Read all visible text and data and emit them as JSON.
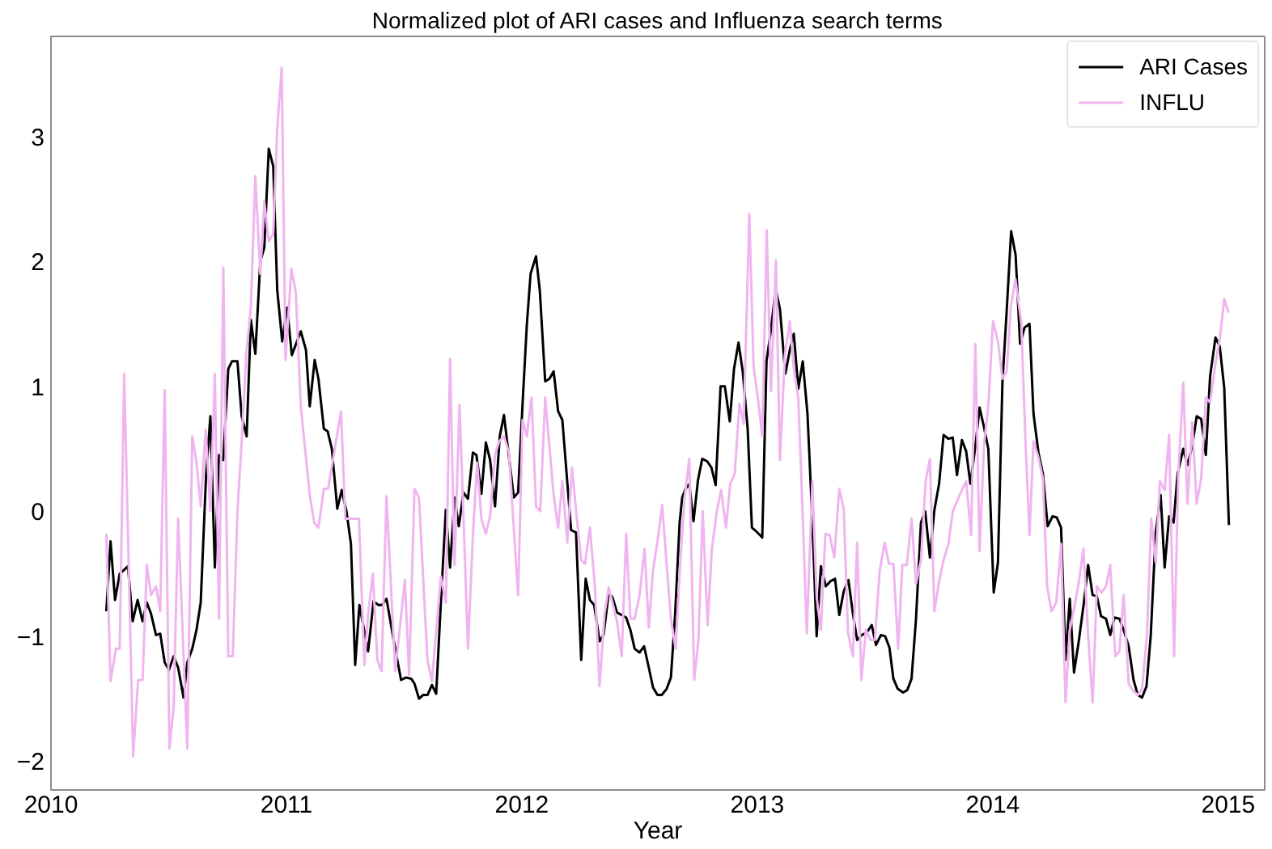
{
  "chart_data": {
    "type": "line",
    "title": "Normalized plot of ARI cases and Influenza search terms",
    "xlabel": "Year",
    "xlim": [
      2010,
      2015.155
    ],
    "xticks": [
      2010,
      2011,
      2012,
      2013,
      2014,
      2015
    ],
    "ylim": [
      -2.23,
      3.8
    ],
    "yticks": [
      {
        "value": -2,
        "label": "−2"
      },
      {
        "value": -1,
        "label": "−1"
      },
      0,
      1,
      2,
      3
    ],
    "legend": "top right",
    "grid": false,
    "line_style": "solid",
    "series": [
      {
        "name": "ARI Cases",
        "color": "#000000",
        "x": [
          2010.235,
          2010.253,
          2010.272,
          2010.292,
          2010.327,
          2010.347,
          2010.368,
          2010.389,
          2010.407,
          2010.425,
          2010.446,
          2010.464,
          2010.483,
          2010.501,
          2010.521,
          2010.54,
          2010.563,
          2010.579,
          2010.6,
          2010.618,
          2010.636,
          2010.659,
          2010.677,
          2010.696,
          2010.714,
          2010.732,
          2010.753,
          2010.769,
          2010.792,
          2010.81,
          2010.831,
          2010.849,
          2010.868,
          2010.889,
          2010.906,
          2010.925,
          2010.944,
          2010.961,
          2010.982,
          2011.003,
          2011.023,
          2011.061,
          2011.083,
          2011.099,
          2011.12,
          2011.136,
          2011.159,
          2011.175,
          2011.193,
          2011.216,
          2011.235,
          2011.255,
          2011.274,
          2011.292,
          2011.31,
          2011.347,
          2011.37,
          2011.391,
          2011.406,
          2011.425,
          2011.448,
          2011.466,
          2011.487,
          2011.508,
          2011.53,
          2011.544,
          2011.563,
          2011.58,
          2011.599,
          2011.618,
          2011.636,
          2011.656,
          2011.677,
          2011.695,
          2011.714,
          2011.732,
          2011.752,
          2011.771,
          2011.792,
          2011.807,
          2011.828,
          2011.847,
          2011.865,
          2011.886,
          2011.906,
          2011.924,
          2011.943,
          2011.966,
          2011.984,
          2012.003,
          2012.021,
          2012.037,
          2012.06,
          2012.076,
          2012.099,
          2012.117,
          2012.135,
          2012.154,
          2012.172,
          2012.19,
          2012.209,
          2012.23,
          2012.252,
          2012.271,
          2012.289,
          2012.307,
          2012.33,
          2012.347,
          2012.369,
          2012.385,
          2012.404,
          2012.424,
          2012.443,
          2012.461,
          2012.479,
          2012.5,
          2012.519,
          2012.539,
          2012.557,
          2012.576,
          2012.594,
          2012.615,
          2012.633,
          2012.651,
          2012.67,
          2012.681,
          2012.695,
          2012.711,
          2012.729,
          2012.748,
          2012.766,
          2012.787,
          2012.805,
          2012.823,
          2012.844,
          2012.862,
          2012.883,
          2012.901,
          2012.92,
          2012.938,
          2012.959,
          2012.977,
          2012.995,
          2013.021,
          2013.039,
          2013.057,
          2013.078,
          2013.096,
          2013.119,
          2013.138,
          2013.155,
          2013.174,
          2013.193,
          2013.213,
          2013.234,
          2013.252,
          2013.27,
          2013.291,
          2013.31,
          2013.33,
          2013.348,
          2013.367,
          2013.387,
          2013.406,
          2013.424,
          2013.444,
          2013.465,
          2013.486,
          2013.504,
          2013.525,
          2013.543,
          2013.561,
          2013.578,
          2013.596,
          2013.619,
          2013.637,
          2013.655,
          2013.674,
          2013.695,
          2013.713,
          2013.733,
          2013.752,
          2013.772,
          2013.791,
          2013.812,
          2013.83,
          2013.848,
          2013.869,
          2013.887,
          2013.905,
          2013.926,
          2013.944,
          2013.963,
          2013.981,
          2014.004,
          2014.022,
          2014.041,
          2014.059,
          2014.078,
          2014.097,
          2014.116,
          2014.135,
          2014.156,
          2014.173,
          2014.194,
          2014.213,
          2014.233,
          2014.254,
          2014.272,
          2014.29,
          2014.309,
          2014.327,
          2014.345,
          2014.366,
          2014.387,
          2014.405,
          2014.424,
          2014.442,
          2014.46,
          2014.481,
          2014.499,
          2014.517,
          2014.538,
          2014.556,
          2014.577,
          2014.598,
          2014.616,
          2014.634,
          2014.653,
          2014.671,
          2014.692,
          2014.713,
          2014.73,
          2014.749,
          2014.768,
          2014.785,
          2014.809,
          2014.827,
          2014.847,
          2014.866,
          2014.885,
          2014.905,
          2014.923,
          2014.946,
          2014.964,
          2014.983,
          2015.003
        ],
        "values": [
          -0.8,
          -0.24,
          -0.71,
          -0.5,
          -0.44,
          -0.88,
          -0.71,
          -0.88,
          -0.73,
          -0.82,
          -0.99,
          -0.98,
          -1.21,
          -1.27,
          -1.16,
          -1.25,
          -1.49,
          -1.21,
          -1.1,
          -0.95,
          -0.73,
          0.3,
          0.76,
          -0.45,
          0.45,
          0.41,
          1.14,
          1.2,
          1.2,
          0.76,
          0.6,
          1.53,
          1.26,
          2.0,
          2.11,
          2.9,
          2.76,
          1.77,
          1.36,
          1.63,
          1.25,
          1.44,
          1.29,
          0.84,
          1.21,
          1.06,
          0.66,
          0.64,
          0.5,
          0.02,
          0.17,
          0.0,
          -0.26,
          -1.23,
          -0.75,
          -1.12,
          -0.72,
          -0.75,
          -0.75,
          -0.7,
          -0.95,
          -1.14,
          -1.35,
          -1.33,
          -1.34,
          -1.38,
          -1.5,
          -1.47,
          -1.47,
          -1.39,
          -1.46,
          -0.73,
          0.01,
          -0.45,
          0.11,
          -0.12,
          0.15,
          0.1,
          0.47,
          0.45,
          0.14,
          0.55,
          0.41,
          0.04,
          0.6,
          0.77,
          0.47,
          0.11,
          0.15,
          0.86,
          1.49,
          1.9,
          2.04,
          1.77,
          1.04,
          1.06,
          1.12,
          0.8,
          0.73,
          0.3,
          -0.15,
          -0.17,
          -1.19,
          -0.54,
          -0.71,
          -0.75,
          -1.04,
          -0.99,
          -0.65,
          -0.69,
          -0.81,
          -0.83,
          -0.85,
          -0.95,
          -1.1,
          -1.13,
          -1.08,
          -1.25,
          -1.41,
          -1.47,
          -1.47,
          -1.42,
          -1.33,
          -0.82,
          -0.09,
          0.11,
          0.18,
          0.22,
          -0.08,
          0.25,
          0.42,
          0.4,
          0.35,
          0.21,
          1.0,
          1.0,
          0.72,
          1.14,
          1.35,
          1.12,
          0.66,
          -0.13,
          -0.16,
          -0.21,
          1.2,
          1.44,
          1.78,
          1.62,
          1.1,
          1.29,
          1.42,
          0.98,
          1.2,
          0.78,
          -0.09,
          -1.0,
          -0.44,
          -0.6,
          -0.56,
          -0.54,
          -0.83,
          -0.64,
          -0.55,
          -0.82,
          -1.03,
          -0.99,
          -0.97,
          -0.91,
          -1.07,
          -0.99,
          -1.0,
          -1.09,
          -1.34,
          -1.42,
          -1.45,
          -1.43,
          -1.34,
          -0.86,
          -0.09,
          0.0,
          -0.37,
          0.01,
          0.22,
          0.61,
          0.58,
          0.59,
          0.29,
          0.57,
          0.48,
          0.22,
          0.52,
          0.83,
          0.67,
          0.5,
          -0.65,
          -0.41,
          1.03,
          1.6,
          2.24,
          2.05,
          1.34,
          1.47,
          1.5,
          0.78,
          0.47,
          0.3,
          -0.12,
          -0.04,
          -0.05,
          -0.13,
          -1.19,
          -0.7,
          -1.29,
          -1.03,
          -0.73,
          -0.43,
          -0.67,
          -0.68,
          -0.84,
          -0.86,
          -0.99,
          -0.85,
          -0.86,
          -0.95,
          -1.08,
          -1.35,
          -1.47,
          -1.49,
          -1.4,
          -0.99,
          -0.17,
          0.13,
          -0.45,
          -0.04,
          -0.09,
          0.3,
          0.5,
          0.37,
          0.52,
          0.76,
          0.74,
          0.45,
          1.08,
          1.39,
          1.32,
          0.99,
          -0.11
        ]
      },
      {
        "name": "INFLU",
        "color": "#f0b4f0",
        "x": [
          2010.235,
          2010.253,
          2010.276,
          2010.292,
          2010.311,
          2010.349,
          2010.37,
          2010.389,
          2010.407,
          2010.425,
          2010.446,
          2010.464,
          2010.483,
          2010.503,
          2010.521,
          2010.54,
          2010.579,
          2010.6,
          2010.618,
          2010.636,
          2010.657,
          2010.677,
          2010.696,
          2010.714,
          2010.732,
          2010.753,
          2010.772,
          2010.792,
          2010.81,
          2010.829,
          2010.849,
          2010.868,
          2010.889,
          2010.906,
          2010.925,
          2010.944,
          2010.961,
          2010.98,
          2010.996,
          2011.021,
          2011.04,
          2011.061,
          2011.099,
          2011.118,
          2011.136,
          2011.159,
          2011.177,
          2011.232,
          2011.25,
          2011.274,
          2011.308,
          2011.331,
          2011.347,
          2011.367,
          2011.386,
          2011.404,
          2011.425,
          2011.462,
          2011.503,
          2011.521,
          2011.544,
          2011.563,
          2011.599,
          2011.618,
          2011.656,
          2011.677,
          2011.695,
          2011.714,
          2011.735,
          2011.752,
          2011.771,
          2011.792,
          2011.81,
          2011.828,
          2011.847,
          2011.865,
          2011.886,
          2011.904,
          2011.924,
          2011.945,
          2011.984,
          2012.003,
          2012.021,
          2012.041,
          2012.06,
          2012.078,
          2012.099,
          2012.117,
          2012.135,
          2012.154,
          2012.172,
          2012.193,
          2012.213,
          2012.232,
          2012.252,
          2012.268,
          2012.289,
          2012.31,
          2012.33,
          2012.351,
          2012.369,
          2012.404,
          2012.424,
          2012.443,
          2012.461,
          2012.479,
          2012.5,
          2012.521,
          2012.539,
          2012.557,
          2012.576,
          2012.596,
          2012.615,
          2012.633,
          2012.653,
          2012.672,
          2012.691,
          2012.711,
          2012.732,
          2012.75,
          2012.768,
          2012.789,
          2012.807,
          2012.828,
          2012.846,
          2012.867,
          2012.885,
          2012.904,
          2012.924,
          2012.942,
          2012.966,
          2012.984,
          2013.002,
          2013.021,
          2013.04,
          2013.058,
          2013.079,
          2013.096,
          2013.117,
          2013.138,
          2013.155,
          2013.174,
          2013.193,
          2013.21,
          2013.234,
          2013.252,
          2013.27,
          2013.289,
          2013.307,
          2013.327,
          2013.348,
          2013.367,
          2013.385,
          2013.406,
          2013.424,
          2013.442,
          2013.461,
          2013.481,
          2013.499,
          2013.52,
          2013.541,
          2013.559,
          2013.578,
          2013.598,
          2013.616,
          2013.635,
          2013.655,
          2013.674,
          2013.695,
          2013.715,
          2013.733,
          2013.752,
          2013.772,
          2013.791,
          2013.812,
          2013.83,
          2013.848,
          2013.869,
          2013.887,
          2013.908,
          2013.926,
          2013.944,
          2013.963,
          2013.981,
          2014.001,
          2014.022,
          2014.041,
          2014.059,
          2014.077,
          2014.096,
          2014.121,
          2014.139,
          2014.156,
          2014.173,
          2014.194,
          2014.213,
          2014.231,
          2014.249,
          2014.27,
          2014.29,
          2014.309,
          2014.327,
          2014.348,
          2014.366,
          2014.385,
          2014.405,
          2014.424,
          2014.442,
          2014.462,
          2014.481,
          2014.499,
          2014.52,
          2014.538,
          2014.556,
          2014.577,
          2014.598,
          2014.616,
          2014.634,
          2014.655,
          2014.673,
          2014.692,
          2014.71,
          2014.73,
          2014.749,
          2014.77,
          2014.788,
          2014.809,
          2014.827,
          2014.847,
          2014.866,
          2014.885,
          2014.905,
          2014.923,
          2014.944,
          2014.964,
          2014.983,
          2015.001
        ],
        "values": [
          -0.18,
          -1.36,
          -1.1,
          -1.1,
          1.1,
          -1.96,
          -1.35,
          -1.35,
          -0.43,
          -0.67,
          -0.6,
          -0.8,
          0.97,
          -1.9,
          -1.57,
          -0.06,
          -1.9,
          0.6,
          0.39,
          0.04,
          0.65,
          0.0,
          1.1,
          -0.86,
          1.95,
          -1.16,
          -1.16,
          0.0,
          0.56,
          1.25,
          1.64,
          2.68,
          1.9,
          2.48,
          2.16,
          2.22,
          3.06,
          3.55,
          1.21,
          1.94,
          1.75,
          0.84,
          0.13,
          -0.09,
          -0.13,
          0.18,
          0.18,
          0.8,
          -0.06,
          -0.06,
          -0.06,
          -1.23,
          -0.82,
          -0.5,
          -1.19,
          -1.28,
          0.12,
          -1.28,
          -0.55,
          -1.31,
          0.18,
          0.11,
          -1.19,
          -1.36,
          -0.52,
          -0.73,
          1.22,
          -0.43,
          0.85,
          -0.04,
          -1.1,
          -0.19,
          0.39,
          -0.06,
          -0.18,
          -0.04,
          0.45,
          0.56,
          0.6,
          0.47,
          -0.67,
          0.73,
          0.6,
          0.91,
          0.04,
          0.0,
          0.91,
          0.52,
          0.13,
          -0.13,
          0.24,
          -0.25,
          0.35,
          -0.03,
          -0.39,
          -0.42,
          -0.13,
          -0.6,
          -1.4,
          -0.82,
          -0.61,
          -0.88,
          -1.16,
          -0.18,
          -0.86,
          -0.86,
          -0.67,
          -0.3,
          -0.93,
          -0.47,
          -0.24,
          0.05,
          -0.43,
          -0.86,
          -1.1,
          -0.43,
          0.11,
          0.42,
          -1.35,
          -1.03,
          0.0,
          -0.91,
          -0.3,
          0.0,
          0.17,
          -0.13,
          0.22,
          0.3,
          0.86,
          0.7,
          2.38,
          1.16,
          0.91,
          0.6,
          2.25,
          0.96,
          2.01,
          0.41,
          1.25,
          1.52,
          1.14,
          0.91,
          -0.04,
          -0.98,
          0.24,
          -0.69,
          -0.95,
          -0.18,
          -0.19,
          -0.37,
          0.18,
          0.02,
          -0.97,
          -1.16,
          -0.25,
          -1.35,
          -0.95,
          -1.03,
          -1.03,
          -0.47,
          -0.25,
          -0.42,
          -0.42,
          -1.1,
          -0.43,
          -0.43,
          -0.06,
          -0.58,
          -0.39,
          0.24,
          0.42,
          -0.8,
          -0.56,
          -0.39,
          -0.26,
          0.0,
          0.08,
          0.17,
          0.24,
          -0.19,
          1.34,
          -0.32,
          0.54,
          0.84,
          1.52,
          1.36,
          1.06,
          1.12,
          1.64,
          1.86,
          1.51,
          0.56,
          -0.19,
          0.56,
          0.43,
          0.26,
          -0.6,
          -0.8,
          -0.73,
          -0.26,
          -1.53,
          -0.95,
          -0.75,
          -0.56,
          -0.3,
          -0.99,
          -1.53,
          -0.6,
          -0.65,
          -0.6,
          -0.43,
          -1.16,
          -1.12,
          -0.67,
          -1.38,
          -1.44,
          -1.47,
          -1.42,
          -0.99,
          -0.06,
          -0.41,
          0.24,
          0.17,
          0.61,
          -1.16,
          0.3,
          1.03,
          0.06,
          0.71,
          0.06,
          0.26,
          0.91,
          0.87,
          1.16,
          1.38,
          1.7,
          1.59
        ]
      }
    ]
  }
}
